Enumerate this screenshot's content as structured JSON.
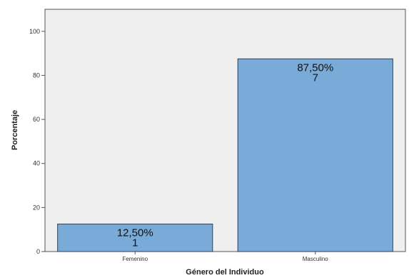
{
  "chart_data": {
    "type": "bar",
    "categories": [
      "Femenino",
      "Masculino"
    ],
    "values": [
      12.5,
      87.5
    ],
    "counts": [
      1,
      7
    ],
    "value_labels": [
      "12,50%",
      "87,50%"
    ],
    "count_labels": [
      "1",
      "7"
    ],
    "xlabel": "Género del Individuo",
    "ylabel": "Porcentaje",
    "ylim": [
      0,
      110
    ],
    "yticks": [
      0,
      20,
      40,
      60,
      80,
      100
    ],
    "grid": false,
    "legend": "none",
    "colors": {
      "bar_fill": "#7aaad8",
      "bar_stroke": "#2d4258",
      "plot_background": "#efefef",
      "frame": "#555555"
    }
  }
}
